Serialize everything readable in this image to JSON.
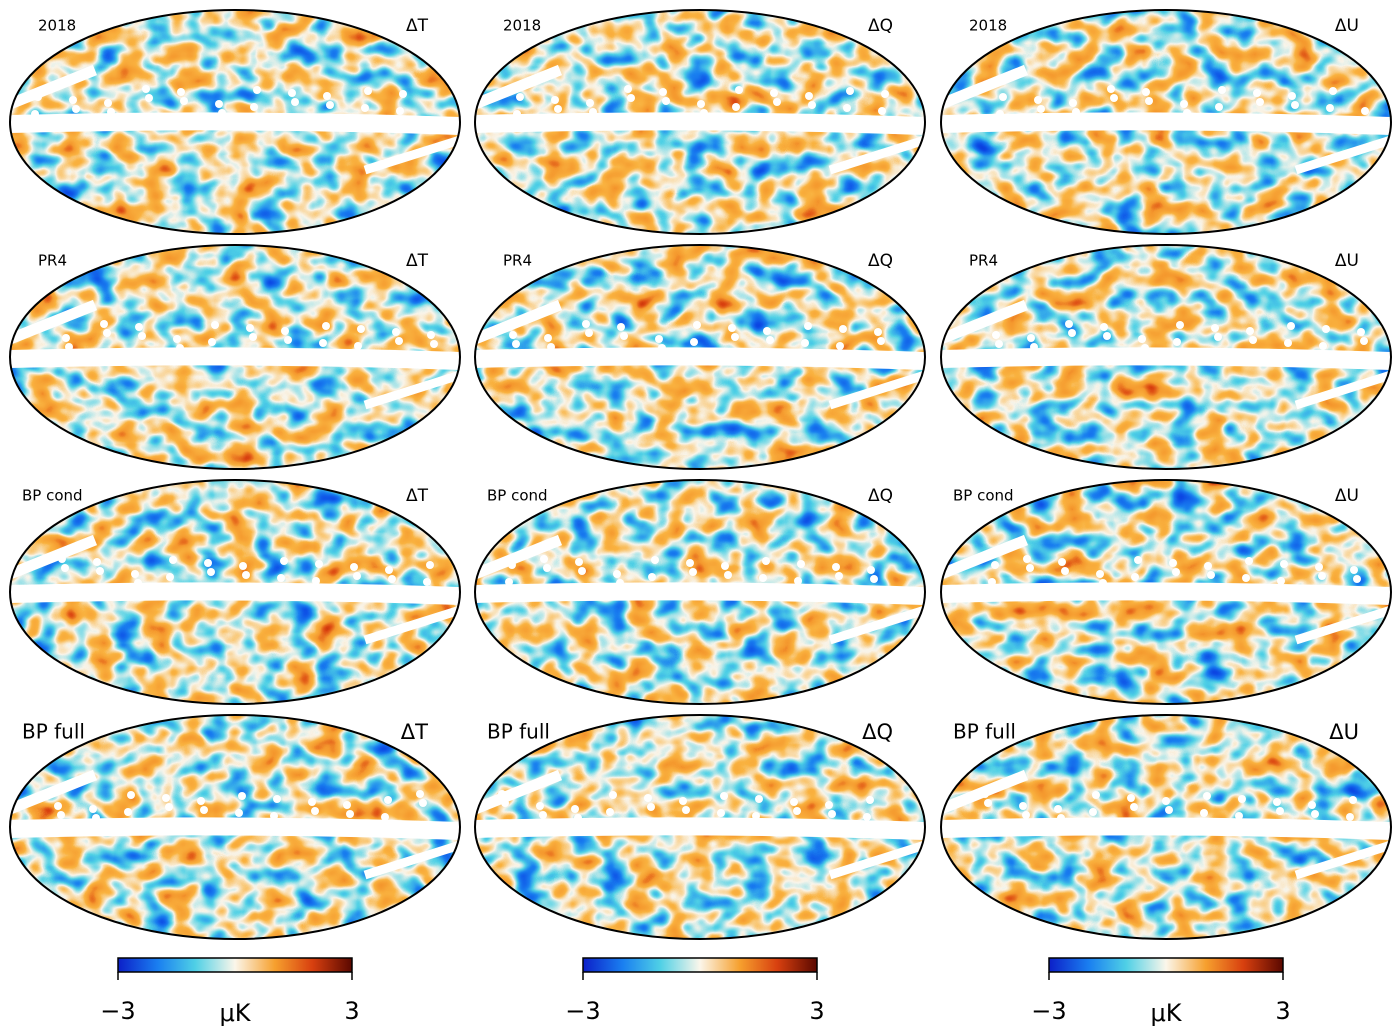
{
  "rows": [
    "2018",
    "PR4",
    "BP cond",
    "BP full"
  ],
  "columns": [
    "ΔT",
    "ΔQ",
    "ΔU"
  ],
  "colorbars": [
    {
      "clim": [
        -3,
        3
      ],
      "ticks": [
        {
          "value": -3,
          "label": "−3"
        },
        {
          "value": 3,
          "label": "3"
        }
      ],
      "label": "μK"
    },
    {
      "clim": [
        -3,
        3
      ],
      "ticks": [
        {
          "value": -3,
          "label": "−3"
        },
        {
          "value": 3,
          "label": "3"
        }
      ]
    },
    {
      "clim": [
        -3,
        3
      ],
      "ticks": [
        {
          "value": -3,
          "label": "−3"
        },
        {
          "value": 3,
          "label": "3"
        }
      ],
      "label": "μK"
    }
  ]
}
